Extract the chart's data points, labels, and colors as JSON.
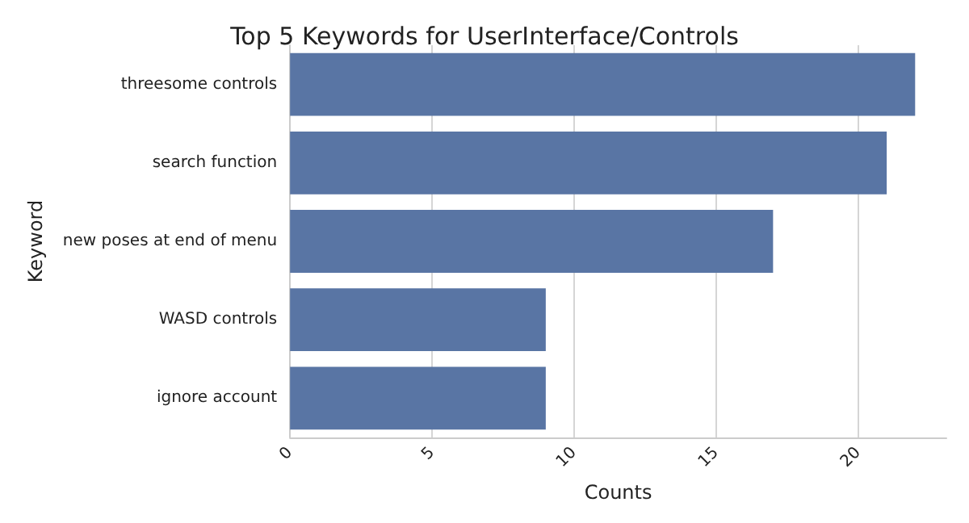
{
  "chart_data": {
    "type": "bar",
    "orientation": "horizontal",
    "title": "Top 5 Keywords for UserInterface/Controls",
    "xlabel": "Counts",
    "ylabel": "Keyword",
    "categories": [
      "threesome controls",
      "search function",
      "new poses at end of menu",
      "WASD controls",
      "ignore account"
    ],
    "values": [
      22,
      21,
      17,
      9,
      9
    ],
    "color": "#5975a4",
    "xlim": [
      0,
      23.1
    ],
    "xticks": [
      0,
      5,
      10,
      15,
      20
    ],
    "grid": "x"
  }
}
